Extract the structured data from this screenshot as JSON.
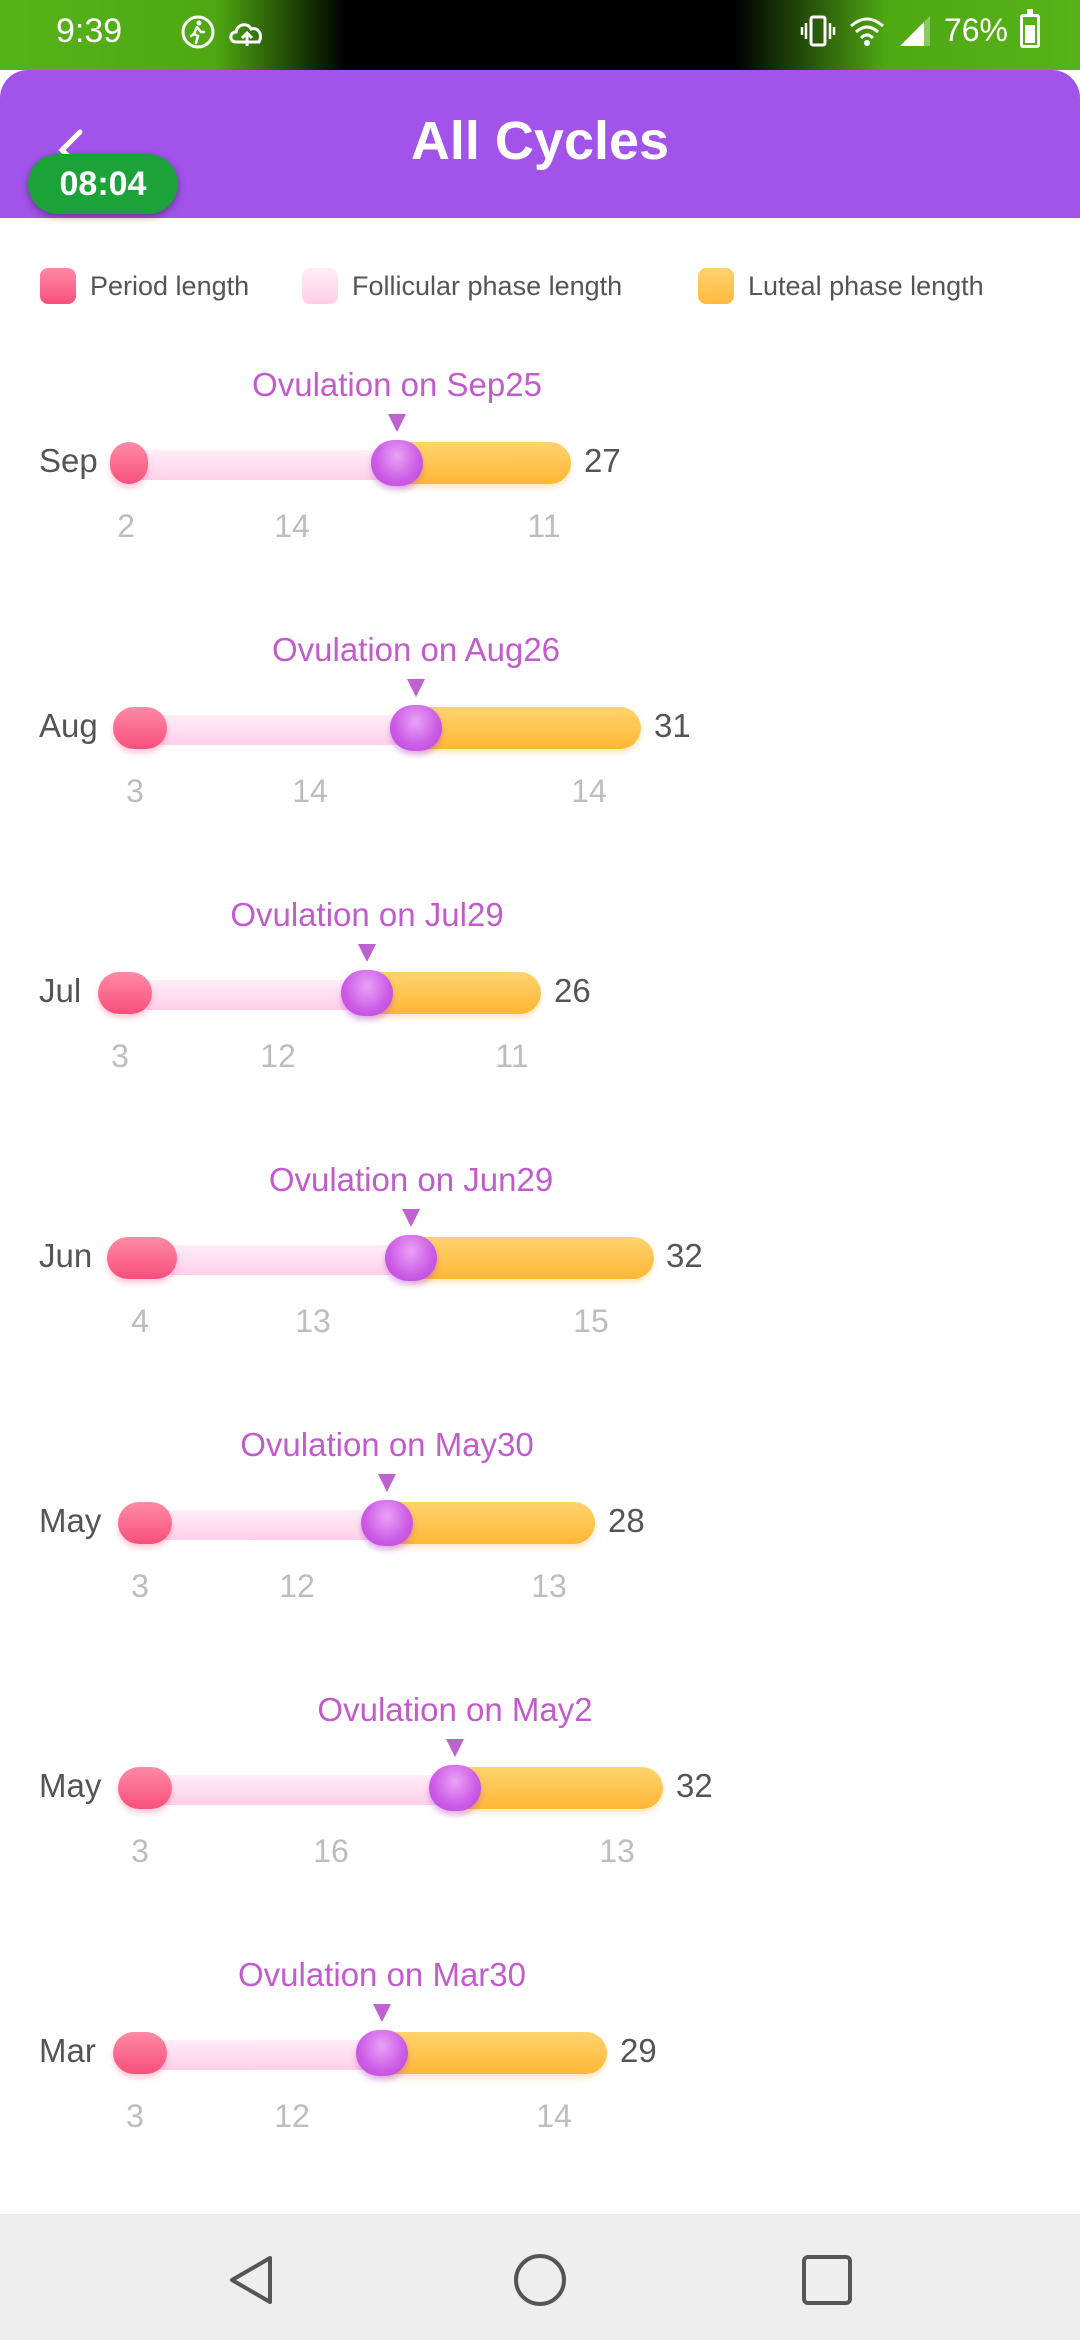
{
  "status_bar": {
    "time": "9:39",
    "battery": "76%",
    "icons": [
      "walking-icon",
      "cloud-upload-icon",
      "vibrate-icon",
      "wifi-icon",
      "signal-icon",
      "battery-icon"
    ]
  },
  "header": {
    "title": "All Cycles",
    "timer": "08:04",
    "back_icon": "chevron-left-icon"
  },
  "legend": {
    "items": [
      {
        "label": "Period length",
        "color": "#f84f7d"
      },
      {
        "label": "Follicular phase length",
        "color": "#ffcde5"
      },
      {
        "label": "Luteal phase length",
        "color": "#ffba3d"
      }
    ]
  },
  "colors": {
    "header": "#a153ea",
    "ovulation": "#c25ccc",
    "period": "#f84f7d",
    "follicular": "#ffcde5",
    "luteal": "#ffba3d"
  },
  "cycles": [
    {
      "ovulation": "Ovulation on Sep25",
      "month": "Sep",
      "total": "27",
      "period": "2",
      "follicular": "14",
      "luteal": "11"
    },
    {
      "ovulation": "Ovulation on Aug26",
      "month": "Aug",
      "total": "31",
      "period": "3",
      "follicular": "14",
      "luteal": "14"
    },
    {
      "ovulation": "Ovulation on Jul29",
      "month": "Jul",
      "total": "26",
      "period": "3",
      "follicular": "12",
      "luteal": "11"
    },
    {
      "ovulation": "Ovulation on Jun29",
      "month": "Jun",
      "total": "32",
      "period": "4",
      "follicular": "13",
      "luteal": "15"
    },
    {
      "ovulation": "Ovulation on May30",
      "month": "May",
      "total": "28",
      "period": "3",
      "follicular": "12",
      "luteal": "13"
    },
    {
      "ovulation": "Ovulation on May2",
      "month": "May",
      "total": "32",
      "period": "3",
      "follicular": "16",
      "luteal": "13"
    },
    {
      "ovulation": "Ovulation on Mar30",
      "month": "Mar",
      "total": "29",
      "period": "3",
      "follicular": "12",
      "luteal": "14"
    }
  ],
  "navigation": {
    "icons": [
      "back-triangle-icon",
      "home-circle-icon",
      "recents-square-icon"
    ]
  }
}
